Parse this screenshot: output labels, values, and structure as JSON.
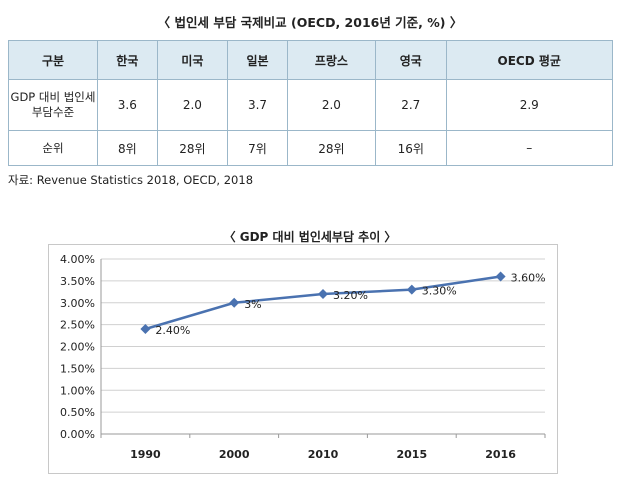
{
  "table_title": "〈 법인세 부담 국제비교 (OECD, 2016년 기준, %) 〉",
  "table": {
    "headers": [
      "구분",
      "한국",
      "미국",
      "일본",
      "프랑스",
      "영국",
      "OECD 평균"
    ],
    "rows": [
      {
        "label_line1": "GDP 대비 법인세",
        "label_line2": "부담수준",
        "cells": [
          "3.6",
          "2.0",
          "3.7",
          "2.0",
          "2.7",
          "2.9"
        ]
      },
      {
        "label_line1": "순위",
        "label_line2": "",
        "cells": [
          "8위",
          "28위",
          "7위",
          "28위",
          "16위",
          "–"
        ]
      }
    ]
  },
  "source": "자료: Revenue Statistics 2018, OECD, 2018",
  "chart_title": "〈 GDP 대비 법인세부담 추이 〉",
  "chart_data": {
    "type": "line",
    "categories": [
      "1990",
      "2000",
      "2010",
      "2015",
      "2016"
    ],
    "series": [
      {
        "values": [
          2.4,
          3.0,
          3.2,
          3.3,
          3.6
        ],
        "color": "#4a72b0"
      }
    ],
    "data_labels": [
      "2.40%",
      "3%",
      "3.20%",
      "3.30%",
      "3.60%"
    ],
    "y_ticks": [
      "0.00%",
      "0.50%",
      "1.00%",
      "1.50%",
      "2.00%",
      "2.50%",
      "3.00%",
      "3.50%",
      "4.00%"
    ],
    "ylim": [
      0,
      4
    ],
    "grid": true,
    "legend": "none"
  }
}
